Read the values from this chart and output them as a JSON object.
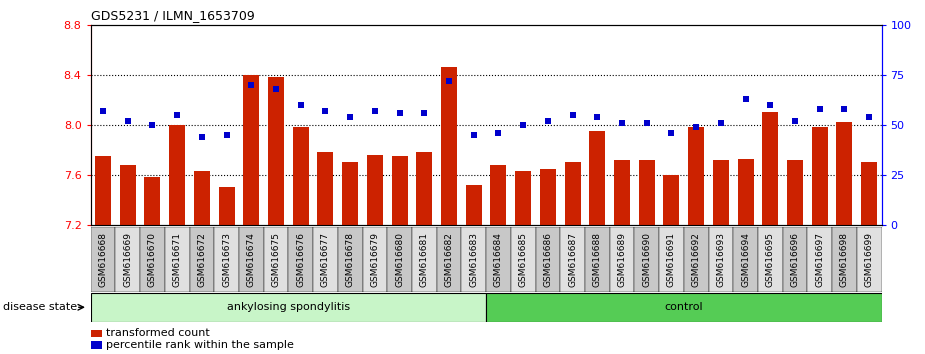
{
  "title": "GDS5231 / ILMN_1653709",
  "samples": [
    "GSM616668",
    "GSM616669",
    "GSM616670",
    "GSM616671",
    "GSM616672",
    "GSM616673",
    "GSM616674",
    "GSM616675",
    "GSM616676",
    "GSM616677",
    "GSM616678",
    "GSM616679",
    "GSM616680",
    "GSM616681",
    "GSM616682",
    "GSM616683",
    "GSM616684",
    "GSM616685",
    "GSM616686",
    "GSM616687",
    "GSM616688",
    "GSM616689",
    "GSM616690",
    "GSM616691",
    "GSM616692",
    "GSM616693",
    "GSM616694",
    "GSM616695",
    "GSM616696",
    "GSM616697",
    "GSM616698",
    "GSM616699"
  ],
  "transformed_count": [
    7.75,
    7.68,
    7.58,
    8.0,
    7.63,
    7.5,
    8.4,
    8.38,
    7.98,
    7.78,
    7.7,
    7.76,
    7.75,
    7.78,
    8.46,
    7.52,
    7.68,
    7.63,
    7.65,
    7.7,
    7.95,
    7.72,
    7.72,
    7.6,
    7.98,
    7.72,
    7.73,
    8.1,
    7.72,
    7.98,
    8.02,
    7.7
  ],
  "percentile_rank": [
    57,
    52,
    50,
    55,
    44,
    45,
    70,
    68,
    60,
    57,
    54,
    57,
    56,
    56,
    72,
    45,
    46,
    50,
    52,
    55,
    54,
    51,
    51,
    46,
    49,
    51,
    63,
    60,
    52,
    58,
    58,
    54
  ],
  "disease_groups": [
    {
      "label": "ankylosing spondylitis",
      "start": 0,
      "end": 15,
      "color": "#c8f5c8"
    },
    {
      "label": "control",
      "start": 16,
      "end": 31,
      "color": "#55cc55"
    }
  ],
  "ylim_left": [
    7.2,
    8.8
  ],
  "ylim_right": [
    0,
    100
  ],
  "yticks_left": [
    7.2,
    7.6,
    8.0,
    8.4,
    8.8
  ],
  "yticks_right": [
    0,
    25,
    50,
    75,
    100
  ],
  "dotted_lines": [
    7.6,
    8.0,
    8.4
  ],
  "bar_color": "#cc2200",
  "scatter_color": "#0000cc",
  "background_color": "#ffffff",
  "bar_bottom": 7.2,
  "tick_label_bg": "#d0d0d0",
  "legend_items": [
    {
      "label": "transformed count",
      "color": "#cc2200"
    },
    {
      "label": "percentile rank within the sample",
      "color": "#0000cc"
    }
  ]
}
